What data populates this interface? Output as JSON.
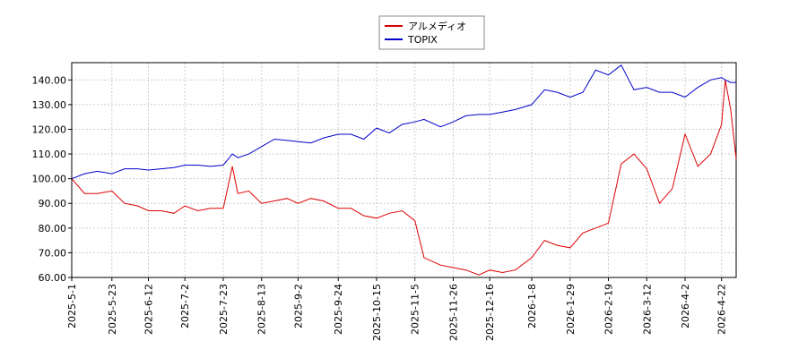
{
  "chart_data": {
    "type": "line",
    "x": [
      "2025-05-01",
      "2025-05-08",
      "2025-05-15",
      "2025-05-23",
      "2025-05-30",
      "2025-06-06",
      "2025-06-12",
      "2025-06-19",
      "2025-06-26",
      "2025-07-02",
      "2025-07-09",
      "2025-07-16",
      "2025-07-23",
      "2025-07-28",
      "2025-07-31",
      "2025-08-06",
      "2025-08-13",
      "2025-08-20",
      "2025-08-27",
      "2025-09-02",
      "2025-09-09",
      "2025-09-16",
      "2025-09-24",
      "2025-10-01",
      "2025-10-08",
      "2025-10-15",
      "2025-10-22",
      "2025-10-29",
      "2025-11-05",
      "2025-11-10",
      "2025-11-19",
      "2025-11-26",
      "2025-12-03",
      "2025-12-10",
      "2025-12-16",
      "2025-12-23",
      "2025-12-30",
      "2026-01-08",
      "2026-01-15",
      "2026-01-22",
      "2026-01-29",
      "2026-02-05",
      "2026-02-12",
      "2026-02-19",
      "2026-02-26",
      "2026-03-05",
      "2026-03-12",
      "2026-03-19",
      "2026-03-26",
      "2026-04-02",
      "2026-04-09",
      "2026-04-16",
      "2026-04-22",
      "2026-04-24",
      "2026-04-27",
      "2026-04-30"
    ],
    "series": [
      {
        "name": "アルメディオ",
        "color": "#dd0000",
        "values": [
          100,
          94,
          94,
          95,
          90,
          89,
          87,
          87,
          86,
          89,
          87,
          88,
          88,
          105,
          94,
          95,
          90,
          91,
          92,
          90,
          92,
          91,
          88,
          88,
          85,
          84,
          86,
          87,
          83,
          68,
          65,
          64,
          63,
          61,
          63,
          62,
          63,
          68,
          75,
          73,
          72,
          78,
          80,
          82,
          106,
          110,
          104,
          90,
          96,
          118,
          105,
          110,
          122,
          140,
          128,
          108
        ]
      },
      {
        "name": "TOPIX",
        "color": "#0000cc",
        "values": [
          100,
          102,
          103,
          102,
          104,
          104,
          103.5,
          104,
          104.5,
          105.5,
          105.5,
          105,
          105.5,
          110,
          108.5,
          110,
          113,
          116,
          115.5,
          115,
          114.5,
          116.5,
          118,
          118,
          116,
          120.5,
          118.5,
          122,
          123,
          124,
          121,
          123,
          125.5,
          126,
          126,
          127,
          128,
          130,
          136,
          135,
          133,
          135,
          144,
          142,
          146,
          136,
          137,
          135,
          135,
          133,
          137,
          140,
          141,
          140,
          139,
          139
        ]
      }
    ],
    "xlim": [
      "2025-05-01",
      "2026-04-30"
    ],
    "xticks": [
      {
        "value": "2025-05-01",
        "label": "2025-5-1"
      },
      {
        "value": "2025-05-23",
        "label": "2025-5-23"
      },
      {
        "value": "2025-06-12",
        "label": "2025-6-12"
      },
      {
        "value": "2025-07-02",
        "label": "2025-7-2"
      },
      {
        "value": "2025-07-23",
        "label": "2025-7-23"
      },
      {
        "value": "2025-08-13",
        "label": "2025-8-13"
      },
      {
        "value": "2025-09-02",
        "label": "2025-9-2"
      },
      {
        "value": "2025-09-24",
        "label": "2025-9-24"
      },
      {
        "value": "2025-10-15",
        "label": "2025-10-15"
      },
      {
        "value": "2025-11-05",
        "label": "2025-11-5"
      },
      {
        "value": "2025-11-26",
        "label": "2025-11-26"
      },
      {
        "value": "2025-12-16",
        "label": "2025-12-16"
      },
      {
        "value": "2026-01-08",
        "label": "2026-1-8"
      },
      {
        "value": "2026-01-29",
        "label": "2026-1-29"
      },
      {
        "value": "2026-02-19",
        "label": "2026-2-19"
      },
      {
        "value": "2026-03-12",
        "label": "2026-3-12"
      },
      {
        "value": "2026-04-02",
        "label": "2026-4-2"
      },
      {
        "value": "2026-04-22",
        "label": "2026-4-22"
      }
    ],
    "ylim": [
      60,
      147
    ],
    "yticks": [
      {
        "value": 60,
        "label": "60.00"
      },
      {
        "value": 70,
        "label": "70.00"
      },
      {
        "value": 80,
        "label": "80.00"
      },
      {
        "value": 90,
        "label": "90.00"
      },
      {
        "value": 100,
        "label": "100.00"
      },
      {
        "value": 110,
        "label": "110.00"
      },
      {
        "value": 120,
        "label": "120.00"
      },
      {
        "value": 130,
        "label": "130.00"
      },
      {
        "value": 140,
        "label": "140.00"
      }
    ],
    "grid": true,
    "legend": "top"
  }
}
